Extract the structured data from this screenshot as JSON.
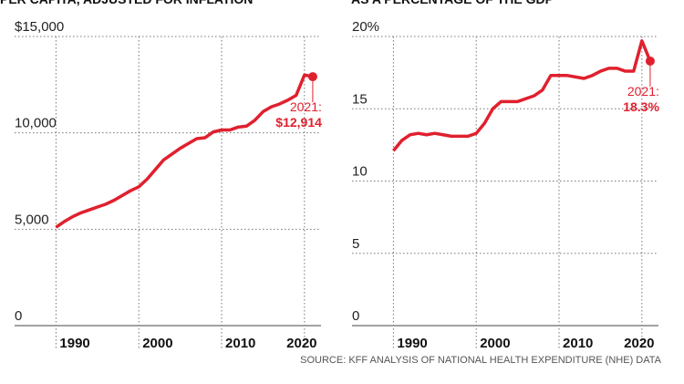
{
  "chart_data": [
    {
      "type": "line",
      "title": "PER CAPITA, ADJUSTED FOR INFLATION",
      "x": [
        1990,
        1991,
        1992,
        1993,
        1994,
        1995,
        1996,
        1997,
        1998,
        1999,
        2000,
        2001,
        2002,
        2003,
        2004,
        2005,
        2006,
        2007,
        2008,
        2009,
        2010,
        2011,
        2012,
        2013,
        2014,
        2015,
        2016,
        2017,
        2018,
        2019,
        2020,
        2021
      ],
      "series": [
        {
          "color": "#e0202e",
          "values": [
            5100,
            5400,
            5650,
            5850,
            6000,
            6150,
            6300,
            6500,
            6750,
            7000,
            7200,
            7600,
            8100,
            8600,
            8900,
            9200,
            9450,
            9700,
            9750,
            10050,
            10150,
            10150,
            10300,
            10350,
            10650,
            11100,
            11350,
            11500,
            11700,
            11950,
            13000,
            12914
          ]
        }
      ],
      "xlim": [
        1985,
        2022
      ],
      "xticks": [
        1990,
        2000,
        2010,
        2020
      ],
      "ylim": [
        0,
        15000
      ],
      "yticks": [
        {
          "value": 15000,
          "label": "$15,000"
        },
        {
          "value": 10000,
          "label": "10,000"
        },
        {
          "value": 5000,
          "label": "5,000"
        },
        0
      ],
      "annotations": [
        "2021:",
        "$12,914"
      ],
      "grid": true
    },
    {
      "type": "line",
      "title": "AS A PERCENTAGE OF THE GDP",
      "x": [
        1990,
        1991,
        1992,
        1993,
        1994,
        1995,
        1996,
        1997,
        1998,
        1999,
        2000,
        2001,
        2002,
        2003,
        2004,
        2005,
        2006,
        2007,
        2008,
        2009,
        2010,
        2011,
        2012,
        2013,
        2014,
        2015,
        2016,
        2017,
        2018,
        2019,
        2020,
        2021
      ],
      "series": [
        {
          "color": "#e0202e",
          "values": [
            12.1,
            12.8,
            13.2,
            13.3,
            13.2,
            13.3,
            13.2,
            13.1,
            13.1,
            13.1,
            13.3,
            14.0,
            15.0,
            15.5,
            15.5,
            15.5,
            15.7,
            15.9,
            16.3,
            17.3,
            17.3,
            17.3,
            17.2,
            17.1,
            17.3,
            17.6,
            17.8,
            17.8,
            17.6,
            17.6,
            19.7,
            18.3
          ]
        }
      ],
      "xlim": [
        1985,
        2022
      ],
      "xticks": [
        1990,
        2000,
        2010,
        2020
      ],
      "ylim": [
        0,
        20
      ],
      "yticks": [
        {
          "value": 20,
          "label": "20%"
        },
        15,
        10,
        5,
        0
      ],
      "annotations": [
        "2021:",
        "18.3%"
      ],
      "grid": true
    }
  ],
  "source": "SOURCE: KFF ANALYSIS OF NATIONAL HEALTH EXPENDITURE (NHE) DATA"
}
